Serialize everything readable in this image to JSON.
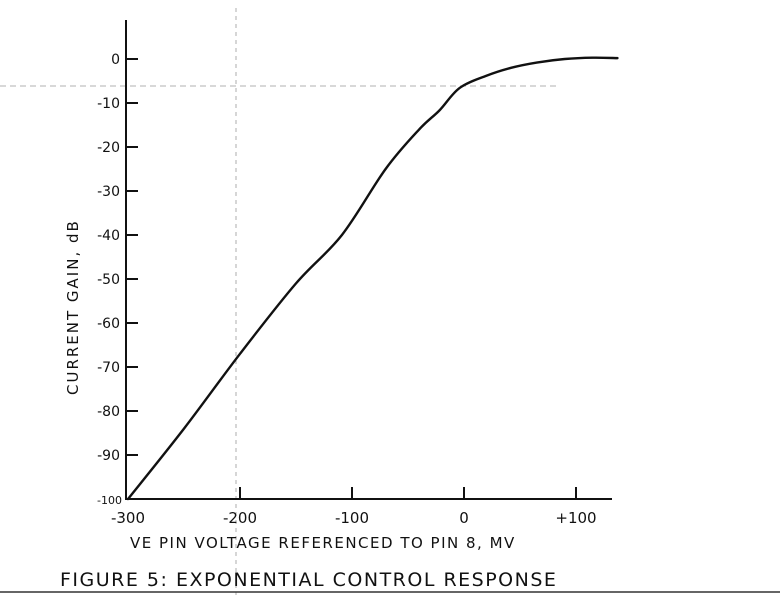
{
  "chart_data": {
    "type": "line",
    "title": "FIGURE 5: EXPONENTIAL CONTROL RESPONSE",
    "xlabel": "VE PIN VOLTAGE REFERENCED TO PIN 8, MV",
    "ylabel": "CURRENT GAIN, dB",
    "xlim": [
      -300,
      135
    ],
    "ylim": [
      -100,
      8
    ],
    "xticks": [
      -300,
      -200,
      -100,
      0,
      100
    ],
    "xtick_labels": [
      "-300",
      "-200",
      "-100",
      "0",
      "+100"
    ],
    "yticks": [
      0,
      -10,
      -20,
      -30,
      -40,
      -50,
      -60,
      -70,
      -80,
      -90,
      -100
    ],
    "ytick_labels": [
      "0",
      "-10",
      "-20",
      "-30",
      "-40",
      "-50",
      "-60",
      "-70",
      "-80",
      "-90",
      "-100"
    ],
    "grid": false,
    "series": [
      {
        "x": [
          -300,
          -250,
          -200,
          -150,
          -109,
          -70,
          -40,
          -22,
          -4,
          20,
          42,
          65,
          90,
          115,
          137
        ],
        "y": [
          -100,
          -84,
          -67,
          -51,
          -40,
          -25,
          -16,
          -11.7,
          -6.6,
          -3.8,
          -2,
          -0.8,
          0,
          0.3,
          0.2
        ]
      }
    ],
    "color": "#111111"
  }
}
